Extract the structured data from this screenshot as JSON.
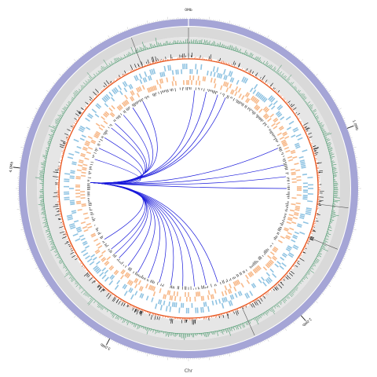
{
  "figure": {
    "chromosome_label": "Chr",
    "major_tick_labels": [
      "0Mb",
      "1.0Mb",
      "2.0Mb",
      "3.0Mb",
      "4.0Mb"
    ],
    "colors": {
      "chromosome_band": "#a5a5d6",
      "gray_track": "#d9d9d9",
      "gray_track_inner": "#e6e6e6",
      "green_histogram": "#2e8b57",
      "orange_histogram": "#e8531a",
      "black_histogram": "#111111",
      "blue_genes": "#8fc3e2",
      "orange_genes": "#f7b98a",
      "link_color": "#1a1adb",
      "marker_lines": "#555555"
    },
    "links": {
      "hub_position_mb": 3.95,
      "targets_mb": [
        2.35,
        2.45,
        2.55,
        2.65,
        2.75,
        2.85,
        2.95,
        3.05,
        3.15,
        3.25,
        3.3,
        3.35,
        3.45,
        4.15,
        4.25,
        4.35,
        4.45,
        4.5,
        4.6,
        4.7,
        4.8,
        0.05,
        0.15,
        0.25,
        0.32,
        0.95,
        1.1,
        1.2,
        1.3
      ]
    }
  }
}
